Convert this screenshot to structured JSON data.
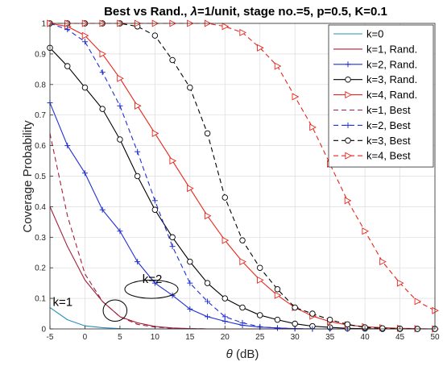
{
  "chart_data": {
    "type": "line",
    "title_prefix": "Best vs Rand., ",
    "title_symbol": "λ",
    "title_suffix": "=1/unit, stage no.=5, p=0.5, K=0.1",
    "xlabel_symbol": "θ",
    "xlabel_unit": " (dB)",
    "ylabel": "Coverage Probability",
    "xlim": [
      -5,
      50
    ],
    "ylim": [
      0,
      1
    ],
    "xticks": [
      -5,
      0,
      5,
      10,
      15,
      20,
      25,
      30,
      35,
      40,
      45,
      50
    ],
    "yticks": [
      0,
      0.1,
      0.2,
      0.3,
      0.4,
      0.5,
      0.6,
      0.7,
      0.8,
      0.9,
      1
    ],
    "grid": true,
    "legend_position": "top-right",
    "x": [
      -5,
      -2.5,
      0,
      2.5,
      5,
      7.5,
      10,
      12.5,
      15,
      17.5,
      20,
      22.5,
      25,
      27.5,
      30,
      32.5,
      35,
      37.5,
      40,
      42.5,
      45,
      47.5,
      50
    ],
    "series": [
      {
        "name": "k=0",
        "color": "#2a8fb8",
        "dash": "solid",
        "marker": "none",
        "values": [
          0.07,
          0.03,
          0.01,
          0.004,
          0.001,
          0,
          0,
          0,
          0,
          0,
          0,
          0,
          0,
          0,
          0,
          0,
          0,
          0,
          0,
          0,
          0,
          0,
          0
        ]
      },
      {
        "name": "k=1, Rand.",
        "color": "#a3203a",
        "dash": "solid",
        "marker": "none",
        "values": [
          0.4,
          0.27,
          0.16,
          0.09,
          0.04,
          0.02,
          0.008,
          0.003,
          0.001,
          0,
          0,
          0,
          0,
          0,
          0,
          0,
          0,
          0,
          0,
          0,
          0,
          0,
          0
        ]
      },
      {
        "name": "k=2, Rand.",
        "color": "#1f2fd6",
        "dash": "solid",
        "marker": "plus",
        "values": [
          0.74,
          0.6,
          0.51,
          0.39,
          0.32,
          0.22,
          0.15,
          0.11,
          0.065,
          0.04,
          0.025,
          0.012,
          0.006,
          0.003,
          0.001,
          0,
          0,
          0,
          0,
          0,
          0,
          0,
          0
        ]
      },
      {
        "name": "k=3, Rand.",
        "color": "#000000",
        "dash": "solid",
        "marker": "circle",
        "values": [
          0.92,
          0.86,
          0.79,
          0.72,
          0.62,
          0.5,
          0.39,
          0.3,
          0.22,
          0.15,
          0.1,
          0.07,
          0.045,
          0.03,
          0.017,
          0.009,
          0.005,
          0.002,
          0.001,
          0,
          0,
          0,
          0
        ]
      },
      {
        "name": "k=4, Rand.",
        "color": "#e8261c",
        "dash": "solid",
        "marker": "triangle",
        "values": [
          1.0,
          0.99,
          0.96,
          0.9,
          0.82,
          0.73,
          0.64,
          0.55,
          0.46,
          0.37,
          0.29,
          0.22,
          0.16,
          0.11,
          0.07,
          0.042,
          0.024,
          0.013,
          0.007,
          0.004,
          0.002,
          0.001,
          0
        ]
      },
      {
        "name": "k=1, Best",
        "color": "#a3203a",
        "dash": "dashed",
        "marker": "none",
        "values": [
          0.64,
          0.37,
          0.18,
          0.09,
          0.04,
          0.015,
          0.006,
          0.002,
          0.001,
          0,
          0,
          0,
          0,
          0,
          0,
          0,
          0,
          0,
          0,
          0,
          0,
          0,
          0
        ]
      },
      {
        "name": "k=2, Best",
        "color": "#1f2fd6",
        "dash": "dashed",
        "marker": "plus",
        "values": [
          1.0,
          0.98,
          0.94,
          0.84,
          0.73,
          0.58,
          0.42,
          0.27,
          0.15,
          0.09,
          0.04,
          0.02,
          0.007,
          0.003,
          0.001,
          0,
          0,
          0,
          0,
          0,
          0,
          0,
          0
        ]
      },
      {
        "name": "k=3, Best",
        "color": "#000000",
        "dash": "dashed",
        "marker": "circle",
        "values": [
          1.0,
          1.0,
          1.0,
          1.0,
          1.0,
          0.99,
          0.96,
          0.88,
          0.79,
          0.64,
          0.43,
          0.29,
          0.2,
          0.13,
          0.07,
          0.05,
          0.03,
          0.015,
          0.005,
          0.002,
          0.001,
          0,
          0
        ]
      },
      {
        "name": "k=4, Best",
        "color": "#e8261c",
        "dash": "dashed",
        "marker": "triangle",
        "values": [
          1.0,
          1.0,
          1.0,
          1.0,
          1.0,
          1.0,
          1.0,
          1.0,
          1.0,
          1.0,
          0.99,
          0.97,
          0.92,
          0.86,
          0.76,
          0.66,
          0.54,
          0.42,
          0.32,
          0.22,
          0.15,
          0.09,
          0.06
        ]
      }
    ],
    "annotations": [
      {
        "label": "k=1",
        "text_at": [
          -4.6,
          0.075
        ],
        "ellipse_center": [
          4.3,
          0.06
        ],
        "ellipse_radius": [
          1.7,
          0.035
        ]
      },
      {
        "label": "k=2",
        "text_at": [
          8.2,
          0.15
        ],
        "ellipse_center": [
          9.5,
          0.13
        ],
        "ellipse_radius": [
          3.8,
          0.03
        ]
      }
    ]
  }
}
